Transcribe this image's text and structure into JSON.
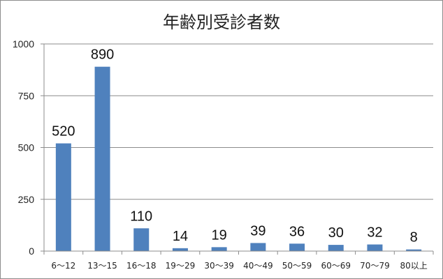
{
  "chart_data": {
    "type": "bar",
    "title": "年齢別受診者数",
    "xlabel": "",
    "ylabel": "",
    "categories": [
      "6～12",
      "13～15",
      "16～18",
      "19～29",
      "30～39",
      "40～49",
      "50～59",
      "60～69",
      "70～79",
      "80以上"
    ],
    "values": [
      520,
      890,
      110,
      14,
      19,
      39,
      36,
      30,
      32,
      8
    ],
    "ylim": [
      0,
      1000
    ],
    "yticks": [
      0,
      250,
      500,
      750,
      1000
    ],
    "ytick_labels": [
      "0",
      "250",
      "500",
      "750",
      "1000"
    ],
    "bar_color": "#4f81bd",
    "grid": true,
    "data_labels": true,
    "legend": "none"
  }
}
